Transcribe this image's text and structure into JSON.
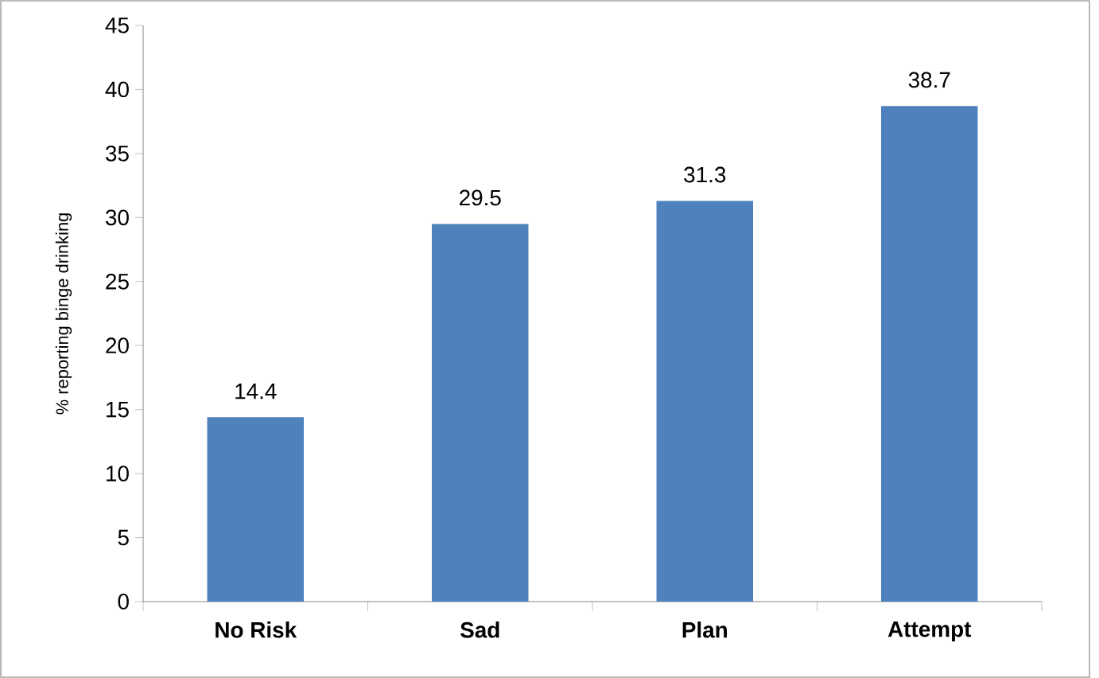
{
  "chart_data": {
    "type": "bar",
    "ylabel": "% reporting binge drinking",
    "categories": [
      "No Risk",
      "Sad",
      "Plan",
      "Attempt"
    ],
    "values": [
      14.4,
      29.5,
      31.3,
      38.7
    ],
    "color": "#4f81bd",
    "ylim": [
      0,
      45
    ],
    "yticks": [
      0,
      5,
      10,
      15,
      20,
      25,
      30,
      35,
      40,
      45
    ],
    "data_labels": true,
    "grid": false
  }
}
